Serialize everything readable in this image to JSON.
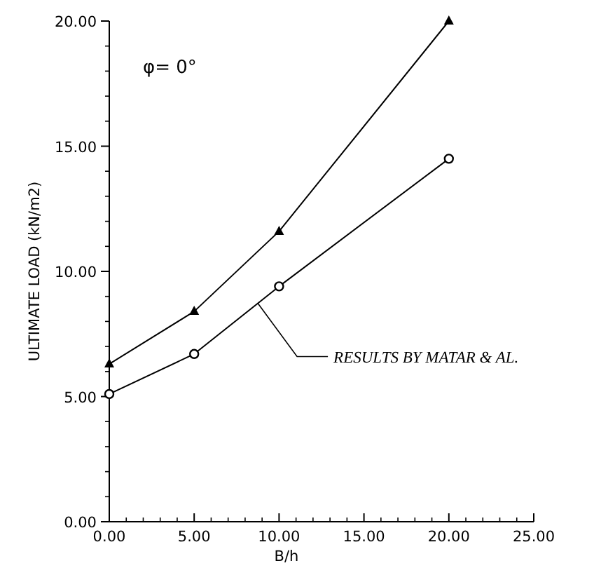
{
  "chart_data": {
    "type": "line",
    "xlabel": "B/h",
    "ylabel": "ULTIMATE LOAD (kN/m2)",
    "annotations": [
      "φ= 0°"
    ],
    "xlim": [
      0,
      25
    ],
    "xticks": [
      {
        "value": 0,
        "label": "0.00"
      },
      {
        "value": 5,
        "label": "5.00"
      },
      {
        "value": 10,
        "label": "10.00"
      },
      {
        "value": 15,
        "label": "15.00"
      },
      {
        "value": 20,
        "label": "20.00"
      },
      {
        "value": 25,
        "label": "25.00"
      }
    ],
    "ylim": [
      0,
      20
    ],
    "yticks": [
      {
        "value": 0,
        "label": "0.00"
      },
      {
        "value": 5,
        "label": "5.00"
      },
      {
        "value": 10,
        "label": "10.00"
      },
      {
        "value": 15,
        "label": "15.00"
      },
      {
        "value": 20,
        "label": "20.00"
      }
    ],
    "grid": false,
    "series": [
      {
        "color": "#000000",
        "marker": "triangle",
        "x": [
          0,
          5,
          10,
          20
        ],
        "values": [
          6.3,
          8.4,
          11.6,
          20.0
        ]
      },
      {
        "name": "RESULTS BY MATAR & AL.",
        "color": "#000000",
        "marker": "circle",
        "x": [
          0,
          5,
          10,
          20
        ],
        "values": [
          5.1,
          6.7,
          9.4,
          14.5
        ]
      }
    ]
  }
}
